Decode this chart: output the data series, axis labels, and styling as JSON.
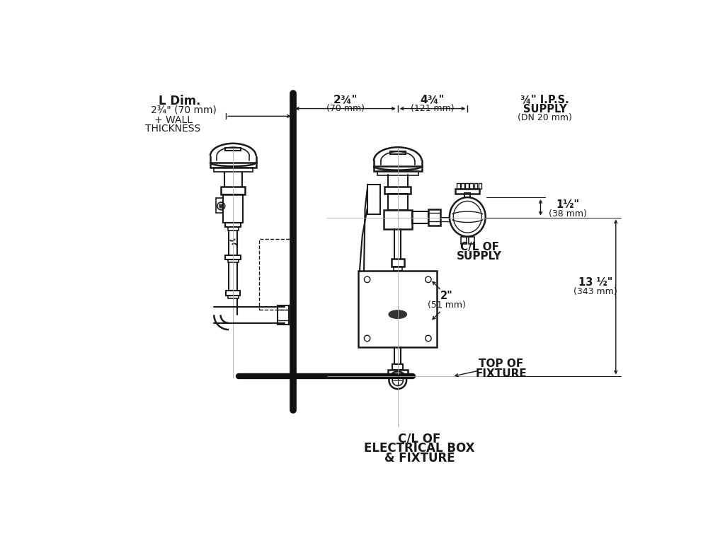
{
  "bg_color": "#ffffff",
  "line_color": "#1a1a1a",
  "annotations": {
    "l_dim": "L Dim.",
    "l_dim_sub1": "2¾\" (70 mm)",
    "l_dim_sub2": "+ WALL",
    "l_dim_sub3": "THICKNESS",
    "dim_234": "2¾\"",
    "dim_70mm": "(70 mm)",
    "dim_434": "4¾\"",
    "dim_121mm": "(121 mm)",
    "supply1": "¾\" I.P.S.",
    "supply2": "SUPPLY",
    "supply3": "(DN 20 mm)",
    "dim_112": "1½\"",
    "dim_38mm": "(38 mm)",
    "cl_supply1": "C/L OF",
    "cl_supply2": "SUPPLY",
    "dim_2in": "2\"",
    "dim_51mm": "(51 mm)",
    "dim_1312": "13 ½\"",
    "dim_343mm": "(343 mm)",
    "top_fix1": "TOP OF",
    "top_fix2": "FIXTURE",
    "cl_elec1": "C/L OF",
    "cl_elec2": "ELECTRICAL BOX",
    "cl_elec3": "& FIXTURE"
  }
}
